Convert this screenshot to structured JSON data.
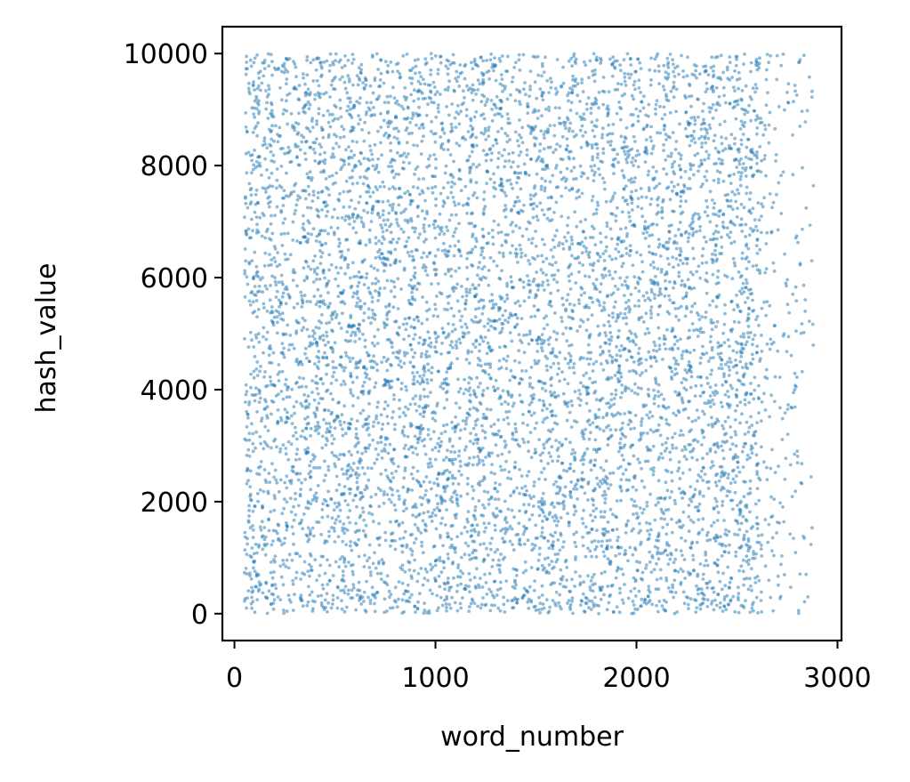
{
  "chart_data": {
    "type": "scatter",
    "title": "",
    "xlabel": "word_number",
    "ylabel": "hash_value",
    "xlim": [
      -60,
      3020
    ],
    "ylim": [
      -480,
      10480
    ],
    "xticks": [
      0,
      1000,
      2000,
      3000
    ],
    "yticks": [
      0,
      2000,
      4000,
      6000,
      8000,
      10000
    ],
    "grid": false,
    "legend": "none",
    "series": [
      {
        "color": "#1f77b4",
        "alpha": 0.5,
        "description_of_distribution": "about 7600 points; x roughly uniform 50–2600 with density thinning toward 2880; y roughly uniform 0–10000",
        "x_range": [
          50,
          2880
        ],
        "y_range": [
          0,
          10000
        ],
        "approx_point_count": 7600,
        "sample_points": [
          [
            60,
            9950
          ],
          [
            120,
            9650
          ],
          [
            300,
            9400
          ],
          [
            520,
            9850
          ],
          [
            880,
            9700
          ],
          [
            1150,
            9800
          ],
          [
            1360,
            9950
          ],
          [
            1700,
            9900
          ],
          [
            2100,
            9950
          ],
          [
            2500,
            9950
          ],
          [
            2790,
            9330
          ],
          [
            2840,
            8780
          ],
          [
            2880,
            7640
          ],
          [
            2860,
            5220
          ],
          [
            2800,
            2900
          ],
          [
            2830,
            1380
          ],
          [
            2680,
            50
          ],
          [
            1500,
            60
          ],
          [
            700,
            40
          ],
          [
            60,
            100
          ],
          [
            1000,
            5000
          ],
          [
            1800,
            4500
          ],
          [
            420,
            4500
          ],
          [
            2200,
            7500
          ],
          [
            2600,
            7900
          ]
        ]
      }
    ]
  }
}
